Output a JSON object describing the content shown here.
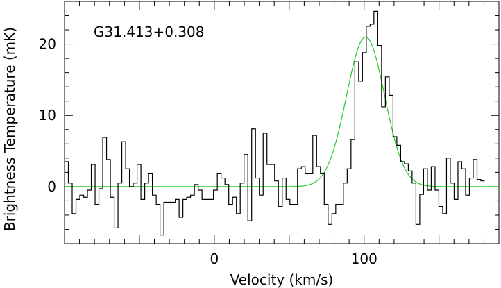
{
  "chart_data": {
    "type": "line",
    "title": "",
    "annotation": "G31.413+0.308",
    "xlabel": "Velocity (km/s)",
    "ylabel": "Brightness Temperature (mK)",
    "xlim": [
      -100,
      190
    ],
    "ylim": [
      -8,
      26
    ],
    "xticks": [
      0,
      100
    ],
    "yticks": [
      0,
      10,
      20
    ],
    "grid": false,
    "legend": "none",
    "series": [
      {
        "style": "histogram-step",
        "color": "#000000",
        "bin_width": 2.55,
        "x_start": -100,
        "values": [
          3.5,
          0.5,
          -3.8,
          -1.8,
          -1.2,
          -1.5,
          -0.5,
          3.1,
          -2.5,
          -0.3,
          6.9,
          3.8,
          -1.5,
          -5.8,
          0.5,
          6.3,
          2.5,
          0,
          0.5,
          3.1,
          -1.8,
          0.5,
          1.8,
          -1.2,
          -2.5,
          -6.8,
          -2.2,
          -2.2,
          -2.2,
          -1.8,
          -4.3,
          -1.8,
          -1.5,
          -1.2,
          0.3,
          -0.5,
          -1.8,
          -1.8,
          -1.8,
          -0.5,
          1.8,
          1.2,
          0.3,
          -2.5,
          -1.5,
          -3.8,
          0.5,
          4.5,
          -4.8,
          8.1,
          1.2,
          -1.2,
          7.5,
          3.1,
          3.1,
          0.8,
          -2.8,
          1.2,
          -1.8,
          -2.5,
          -2.5,
          2.5,
          2.8,
          1.8,
          1.8,
          7.2,
          2.8,
          1.8,
          -2.5,
          -5.3,
          -3.8,
          -2.5,
          -2.5,
          0.5,
          2.5,
          6.6,
          17.5,
          14.8,
          18.8,
          22.5,
          22.8,
          24.6,
          19.8,
          11.2,
          15.4,
          12.8,
          7.0,
          5.8,
          3.5,
          3.2,
          2.2,
          0.5,
          -5.3,
          -1.1,
          2.5,
          -0.5,
          2.8,
          -0.5,
          -2.8,
          -3.8,
          4.0,
          0.5,
          -1.8,
          3.5,
          2.5,
          -1.2,
          1.2,
          3.8,
          1.0,
          0.8
        ]
      },
      {
        "style": "gaussian-fit",
        "color": "#22cc22",
        "amplitude": 21.0,
        "center": 101,
        "fwhm": 30
      }
    ]
  }
}
